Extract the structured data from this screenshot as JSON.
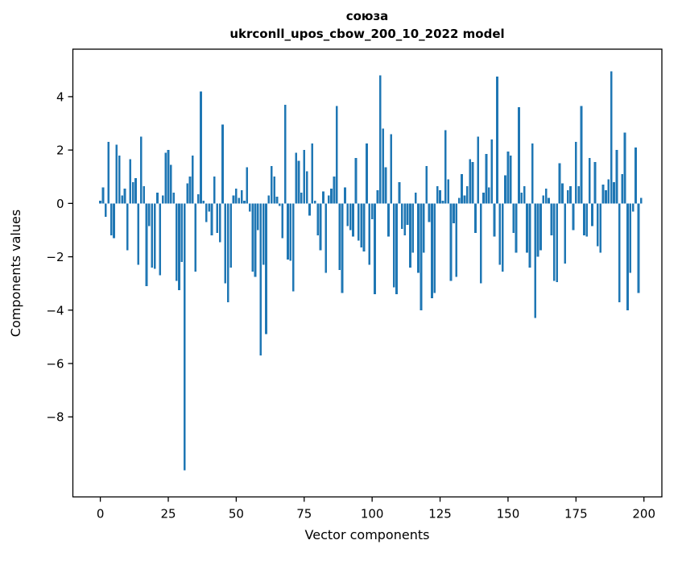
{
  "title": {
    "word": "союза",
    "model_line": "ukrconll_upos_cbow_200_10_2022 model"
  },
  "chart_data": {
    "type": "bar",
    "title": "союза",
    "subtitle": "ukrconll_upos_cbow_200_10_2022 model",
    "xlabel": "Vector components",
    "ylabel": "Components values",
    "legend": null,
    "grid": false,
    "bar_color": "#1f77b4",
    "n_components": 200,
    "x_ticks": [
      0,
      25,
      50,
      75,
      100,
      125,
      150,
      175,
      200
    ],
    "y_ticks": [
      4,
      2,
      0,
      -2,
      -4,
      -6,
      -8
    ],
    "xlim": [
      -10.1,
      206.6
    ],
    "ylim": [
      -11.0,
      5.78
    ],
    "values": [
      0.1,
      0.6,
      -0.5,
      2.3,
      -1.2,
      -1.3,
      2.2,
      1.8,
      0.3,
      0.55,
      -1.75,
      1.65,
      0.8,
      0.95,
      -2.3,
      2.5,
      0.65,
      -3.1,
      -0.85,
      -2.4,
      -2.45,
      0.4,
      -2.7,
      0.3,
      1.9,
      2.0,
      1.45,
      0.4,
      -2.9,
      -3.25,
      -2.2,
      -10.0,
      0.75,
      1.0,
      1.8,
      -2.55,
      0.35,
      4.2,
      0.1,
      -0.7,
      -0.3,
      -1.2,
      1.0,
      -1.1,
      -1.45,
      2.95,
      -3.0,
      -3.7,
      -2.4,
      0.3,
      0.55,
      0.2,
      0.5,
      0.1,
      1.35,
      -0.3,
      -2.55,
      -2.75,
      -1.0,
      -5.7,
      -2.3,
      -4.9,
      0.3,
      1.4,
      1.0,
      0.25,
      -0.1,
      -1.3,
      3.7,
      -2.1,
      -2.15,
      -3.3,
      1.9,
      1.6,
      0.4,
      2.0,
      1.2,
      -0.45,
      2.25,
      0.1,
      -1.2,
      -1.75,
      0.45,
      -2.6,
      0.3,
      0.55,
      1.0,
      3.65,
      -2.5,
      -3.35,
      0.6,
      -0.85,
      -1.0,
      -1.25,
      1.7,
      -1.4,
      -1.65,
      -1.8,
      2.25,
      -2.3,
      -0.6,
      -3.4,
      0.5,
      4.8,
      2.8,
      1.35,
      -1.25,
      2.6,
      -3.15,
      -3.4,
      0.8,
      -0.95,
      -1.2,
      -0.8,
      -2.4,
      -1.85,
      0.4,
      -2.6,
      -4.0,
      -1.85,
      1.4,
      -0.7,
      -3.55,
      -3.35,
      0.65,
      0.5,
      0.1,
      2.75,
      0.9,
      -2.9,
      -0.75,
      -2.75,
      0.2,
      1.1,
      0.3,
      0.65,
      1.65,
      1.55,
      -1.1,
      2.5,
      -3.0,
      0.4,
      1.85,
      0.6,
      2.4,
      -1.25,
      4.75,
      -2.3,
      -2.55,
      1.05,
      1.95,
      1.8,
      -1.1,
      -1.85,
      3.6,
      0.4,
      0.65,
      -1.85,
      -2.4,
      2.25,
      -4.3,
      -2.0,
      -1.75,
      0.3,
      0.55,
      0.2,
      -1.2,
      -2.9,
      -2.95,
      1.5,
      0.75,
      -2.25,
      0.5,
      0.65,
      -1.0,
      2.3,
      0.65,
      3.65,
      -1.2,
      -1.25,
      1.7,
      -0.85,
      1.55,
      -1.6,
      -1.85,
      0.7,
      0.5,
      0.9,
      4.95,
      0.8,
      2.0,
      -3.7,
      1.1,
      2.65,
      -4.0,
      -2.6,
      -0.3,
      2.1,
      -3.35,
      0.2
    ]
  }
}
